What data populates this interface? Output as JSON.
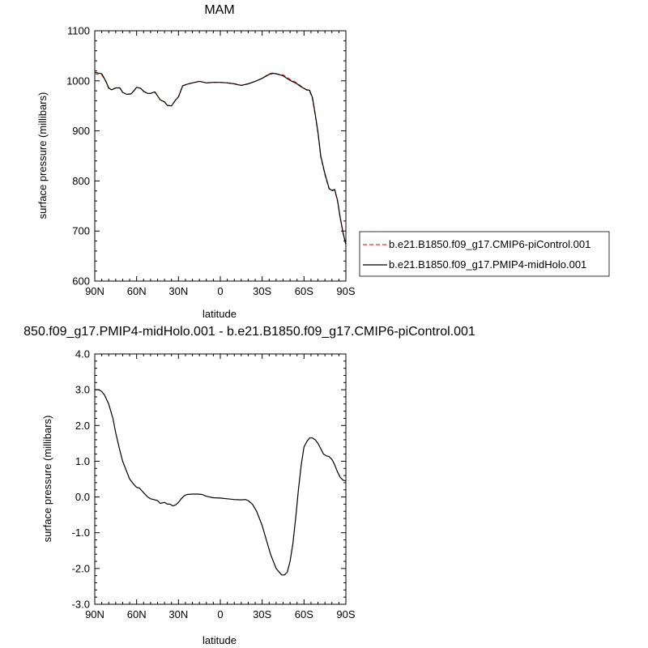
{
  "chart_data": [
    {
      "type": "line",
      "title": "MAM",
      "xlabel": "latitude",
      "ylabel": "surface pressure (millibars)",
      "xlim": [
        90,
        -90
      ],
      "ylim": [
        600,
        1100
      ],
      "xticks": [
        90,
        60,
        30,
        0,
        -30,
        -60,
        -90
      ],
      "xtick_labels": [
        "90N",
        "60N",
        "30N",
        "0",
        "30S",
        "60S",
        "90S"
      ],
      "yticks": [
        600,
        700,
        800,
        900,
        1000,
        1100
      ],
      "ytick_labels": [
        "600",
        "700",
        "800",
        "900",
        "1000",
        "1100"
      ],
      "legend_position": "right",
      "series": [
        {
          "name": "b.e21.B1850.f09_g17.CMIP6-piControl.001",
          "color": "#e03030",
          "dash": "dashed",
          "x": [
            90,
            85,
            82,
            80,
            78,
            75,
            72,
            70,
            67,
            64,
            62,
            60,
            57,
            55,
            52,
            50,
            47,
            45,
            43,
            40,
            38,
            35,
            32,
            30,
            27,
            24,
            20,
            15,
            10,
            5,
            0,
            -5,
            -10,
            -15,
            -20,
            -25,
            -30,
            -35,
            -38,
            -40,
            -45,
            -50,
            -55,
            -58,
            -60,
            -62,
            -64,
            -66,
            -68,
            -70,
            -72,
            -75,
            -78,
            -80,
            -82,
            -84,
            -86,
            -88,
            -90
          ],
          "y": [
            1014,
            1012,
            998,
            985,
            982,
            986,
            986,
            977,
            973,
            974,
            980,
            987,
            985,
            979,
            975,
            975,
            978,
            970,
            962,
            958,
            951,
            950,
            962,
            968,
            990,
            993,
            996,
            999,
            996,
            997,
            997,
            996,
            994,
            991,
            994,
            999,
            1005,
            1014,
            1016,
            1014,
            1012,
            1003,
            996,
            989,
            985,
            981,
            979,
            965,
            932,
            895,
            848,
            812,
            784,
            780,
            782,
            760,
            725,
            695,
            673
          ]
        },
        {
          "name": "b.e21.B1850.f09_g17.PMIP4-midHolo.001",
          "color": "#000000",
          "dash": "solid",
          "x": [
            90,
            85,
            82,
            80,
            78,
            75,
            72,
            70,
            67,
            64,
            62,
            60,
            57,
            55,
            52,
            50,
            47,
            45,
            43,
            40,
            38,
            35,
            32,
            30,
            27,
            24,
            20,
            15,
            10,
            5,
            0,
            -5,
            -10,
            -15,
            -20,
            -25,
            -30,
            -35,
            -38,
            -40,
            -45,
            -50,
            -55,
            -58,
            -60,
            -62,
            -64,
            -66,
            -68,
            -70,
            -72,
            -75,
            -78,
            -80,
            -82,
            -84,
            -86,
            -88,
            -90
          ],
          "y": [
            1017,
            1014,
            999,
            986,
            982,
            986,
            986,
            977,
            973,
            974,
            980,
            987,
            985,
            979,
            975,
            975,
            978,
            970,
            962,
            958,
            951,
            950,
            962,
            968,
            990,
            993,
            996,
            999,
            996,
            997,
            997,
            996,
            994,
            991,
            994,
            999,
            1005,
            1013,
            1015,
            1014,
            1010,
            1001,
            994,
            988,
            985,
            982,
            981,
            967,
            934,
            897,
            850,
            814,
            785,
            781,
            783,
            761,
            726,
            696,
            673
          ]
        }
      ]
    },
    {
      "type": "line",
      "title": "850.f09_g17.PMIP4-midHolo.001 - b.e21.B1850.f09_g17.CMIP6-piControl.001",
      "xlabel": "latitude",
      "ylabel": "surface pressure (millibars)",
      "xlim": [
        90,
        -90
      ],
      "ylim": [
        -3.0,
        4.0
      ],
      "xticks": [
        90,
        60,
        30,
        0,
        -30,
        -60,
        -90
      ],
      "xtick_labels": [
        "90N",
        "60N",
        "30N",
        "0",
        "30S",
        "60S",
        "90S"
      ],
      "yticks": [
        -3,
        -2,
        -1,
        0,
        1,
        2,
        3,
        4
      ],
      "ytick_labels": [
        "-3.0",
        "-2.0",
        "-1.0",
        "0.0",
        "1.0",
        "2.0",
        "3.0",
        "4.0"
      ],
      "series": [
        {
          "color": "#000000",
          "x": [
            90,
            87,
            85,
            83,
            80,
            77,
            75,
            72,
            70,
            67,
            65,
            62,
            60,
            58,
            55,
            52,
            50,
            47,
            45,
            43,
            40,
            38,
            36,
            34,
            32,
            30,
            28,
            26,
            24,
            20,
            16,
            13,
            10,
            5,
            0,
            -5,
            -10,
            -15,
            -18,
            -20,
            -23,
            -26,
            -30,
            -33,
            -36,
            -40,
            -44,
            -46,
            -48,
            -50,
            -52,
            -54,
            -56,
            -58,
            -60,
            -62,
            -64,
            -66,
            -68,
            -70,
            -72,
            -74,
            -76,
            -78,
            -80,
            -82,
            -84,
            -86,
            -88,
            -90
          ],
          "y": [
            3.0,
            3.0,
            2.95,
            2.85,
            2.6,
            2.2,
            1.8,
            1.3,
            1.0,
            0.7,
            0.5,
            0.35,
            0.27,
            0.25,
            0.12,
            0.0,
            -0.05,
            -0.08,
            -0.1,
            -0.18,
            -0.15,
            -0.2,
            -0.2,
            -0.25,
            -0.22,
            -0.15,
            -0.05,
            0.03,
            0.07,
            0.08,
            0.08,
            0.07,
            0.02,
            -0.02,
            -0.03,
            -0.05,
            -0.07,
            -0.08,
            -0.07,
            -0.1,
            -0.2,
            -0.4,
            -0.8,
            -1.2,
            -1.6,
            -2.0,
            -2.18,
            -2.18,
            -2.1,
            -1.8,
            -1.3,
            -0.6,
            0.2,
            0.9,
            1.4,
            1.55,
            1.65,
            1.65,
            1.6,
            1.5,
            1.35,
            1.2,
            1.15,
            1.13,
            1.05,
            0.9,
            0.7,
            0.55,
            0.47,
            0.45
          ]
        }
      ]
    }
  ]
}
